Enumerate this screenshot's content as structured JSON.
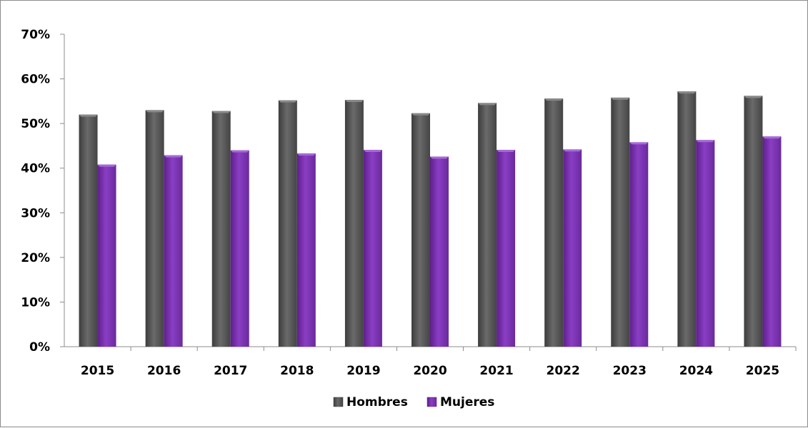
{
  "chart_data": {
    "type": "bar",
    "categories": [
      "2015",
      "2016",
      "2017",
      "2018",
      "2019",
      "2020",
      "2021",
      "2022",
      "2023",
      "2024",
      "2025"
    ],
    "series": [
      {
        "name": "Hombres",
        "values": [
          52.0,
          53.0,
          52.8,
          55.2,
          55.3,
          52.3,
          54.6,
          55.6,
          55.8,
          57.2,
          56.2
        ],
        "color": "#5a5a5a"
      },
      {
        "name": "Mujeres",
        "values": [
          40.8,
          42.9,
          44.0,
          43.3,
          44.1,
          42.6,
          44.1,
          44.2,
          45.8,
          46.3,
          47.1
        ],
        "color": "#7b2fb0"
      }
    ],
    "yticks": [
      "0%",
      "10%",
      "20%",
      "30%",
      "40%",
      "50%",
      "60%",
      "70%"
    ],
    "ylim": [
      0,
      70
    ],
    "unit": "%",
    "legend": "bottom-center",
    "grid": false
  }
}
